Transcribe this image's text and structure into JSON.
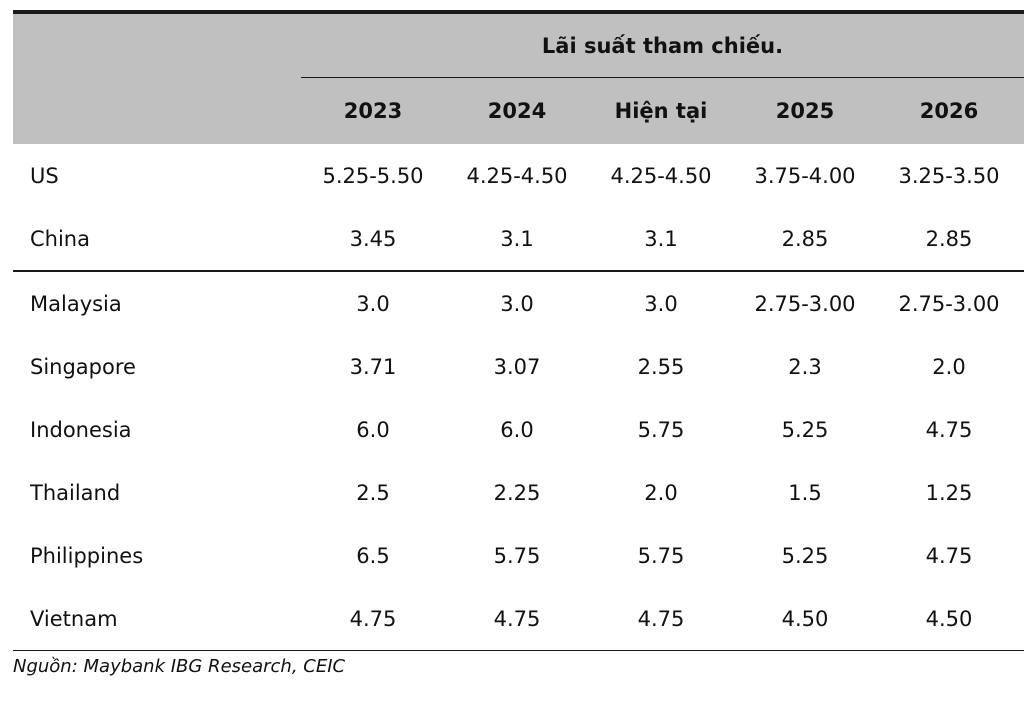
{
  "table": {
    "group_header": "Lãi suất tham chiếu.",
    "columns": [
      "2023",
      "2024",
      "Hiện tại",
      "2025",
      "2026"
    ],
    "rows_group1": [
      {
        "name": "US",
        "values": [
          "5.25-5.50",
          "4.25-4.50",
          "4.25-4.50",
          "3.75-4.00",
          "3.25-3.50"
        ]
      },
      {
        "name": "China",
        "values": [
          "3.45",
          "3.1",
          "3.1",
          "2.85",
          "2.85"
        ]
      }
    ],
    "rows_group2": [
      {
        "name": "Malaysia",
        "values": [
          "3.0",
          "3.0",
          "3.0",
          "2.75-3.00",
          "2.75-3.00"
        ]
      },
      {
        "name": "Singapore",
        "values": [
          "3.71",
          "3.07",
          "2.55",
          "2.3",
          "2.0"
        ]
      },
      {
        "name": "Indonesia",
        "values": [
          "6.0",
          "6.0",
          "5.75",
          "5.25",
          "4.75"
        ]
      },
      {
        "name": "Thailand",
        "values": [
          "2.5",
          "2.25",
          "2.0",
          "1.5",
          "1.25"
        ]
      },
      {
        "name": "Philippines",
        "values": [
          "6.5",
          "5.75",
          "5.75",
          "5.25",
          "4.75"
        ]
      },
      {
        "name": "Vietnam",
        "values": [
          "4.75",
          "4.75",
          "4.75",
          "4.50",
          "4.50"
        ]
      }
    ]
  },
  "footnote": "Nguồn: Maybank IBG Research, CEIC"
}
